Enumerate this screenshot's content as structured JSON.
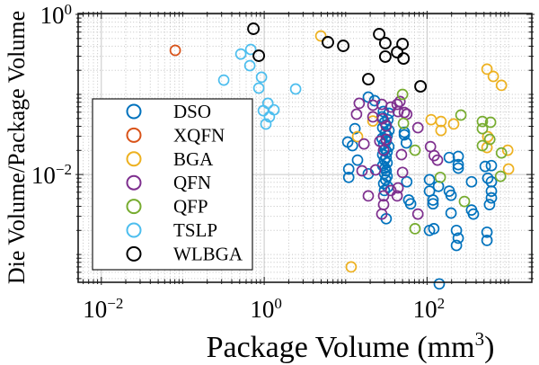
{
  "page": {
    "background": "#ffffff"
  },
  "chart_data": {
    "type": "scatter",
    "title": "",
    "xlabel": {
      "pre": "Package Volume (mm",
      "sup": "3",
      "post": ")"
    },
    "ylabel": "Die Volume/Package Volume",
    "xscale": "log",
    "yscale": "log",
    "xlim": [
      0.0052,
      1930
    ],
    "ylim": [
      0.00045,
      1.026
    ],
    "x_major_tick_exponents": [
      -2,
      0,
      2
    ],
    "y_major_tick_exponents": [
      0,
      -2
    ],
    "x_minor_decades": [
      -3,
      3
    ],
    "y_minor_decades": [
      -4,
      0
    ],
    "grid": {
      "major": true,
      "minor": true,
      "major_color": "#c7c7c7",
      "minor_color": "#b9b9b9",
      "minor_dash": "1 2.4"
    },
    "axis_color": "#1a1a1a",
    "background": "#ffffff",
    "legend": {
      "position": "upper-left-inside",
      "entries": [
        "DSO",
        "XQFN",
        "BGA",
        "QFN",
        "QFP",
        "TSLP",
        "WLBGA"
      ]
    },
    "series": [
      {
        "name": "DSO",
        "color": "#0072BD",
        "marker": "circle",
        "points": [
          [
            29,
            0.0612
          ],
          [
            34,
            0.0581
          ],
          [
            28,
            0.0524
          ],
          [
            33,
            0.0484
          ],
          [
            30,
            0.0449
          ],
          [
            31.5,
            0.0415
          ],
          [
            28.5,
            0.0384
          ],
          [
            34,
            0.0355
          ],
          [
            30.7,
            0.0329
          ],
          [
            32.3,
            0.0304
          ],
          [
            28,
            0.0281
          ],
          [
            31.5,
            0.026
          ],
          [
            29.3,
            0.0241
          ],
          [
            33.9,
            0.0223
          ],
          [
            30.7,
            0.0206
          ],
          [
            32.3,
            0.0191
          ],
          [
            28.5,
            0.0177
          ],
          [
            31.5,
            0.0163
          ],
          [
            30,
            0.0151
          ],
          [
            32.3,
            0.014
          ],
          [
            28.5,
            0.0129
          ],
          [
            30.5,
            0.012
          ],
          [
            31.5,
            0.0111
          ],
          [
            30,
            0.0103
          ],
          [
            32.3,
            0.0095
          ],
          [
            31,
            0.0086
          ],
          [
            29.3,
            0.0077
          ],
          [
            33,
            0.007
          ],
          [
            30,
            0.0063
          ],
          [
            13,
            0.0374
          ],
          [
            52.5,
            0.0337
          ],
          [
            52.5,
            0.0313
          ],
          [
            55.5,
            0.0248
          ],
          [
            10.6,
            0.0254
          ],
          [
            12.1,
            0.0229
          ],
          [
            14,
            0.0151
          ],
          [
            10.9,
            0.0117
          ],
          [
            19,
            0.0102
          ],
          [
            10.9,
            0.0092
          ],
          [
            56.3,
            0.0081
          ],
          [
            19,
            0.0926
          ],
          [
            22.7,
            0.0835
          ],
          [
            59.5,
            0.0048
          ],
          [
            62.7,
            0.0043
          ],
          [
            31.5,
            0.0028
          ],
          [
            118,
            0.0043
          ],
          [
            121,
            0.0021
          ],
          [
            187,
            0.0163
          ],
          [
            241,
            0.0168
          ],
          [
            241,
            0.0133
          ],
          [
            241,
            0.012
          ],
          [
            516,
            0.0126
          ],
          [
            616,
            0.0129
          ],
          [
            556,
            0.009
          ],
          [
            107,
            0.0086
          ],
          [
            138,
            0.0071
          ],
          [
            107,
            0.0062
          ],
          [
            118,
            0.0048
          ],
          [
            187,
            0.0062
          ],
          [
            197,
            0.0055
          ],
          [
            351,
            0.0081
          ],
          [
            616,
            0.0081
          ],
          [
            616,
            0.0062
          ],
          [
            616,
            0.0051
          ],
          [
            584,
            0.0042
          ],
          [
            351,
            0.0036
          ],
          [
            370,
            0.0032
          ],
          [
            197,
            0.0033
          ],
          [
            107,
            0.002
          ],
          [
            229,
            0.002
          ],
          [
            241,
            0.0016
          ],
          [
            229,
            0.0013
          ],
          [
            543,
            0.0019
          ],
          [
            543,
            0.0015
          ],
          [
            141,
            0.00043
          ]
        ]
      },
      {
        "name": "XQFN",
        "color": "#D95319",
        "marker": "circle",
        "points": [
          [
            0.081,
            0.355
          ]
        ]
      },
      {
        "name": "BGA",
        "color": "#EDB120",
        "marker": "circle",
        "points": [
          [
            4.95,
            0.538
          ],
          [
            543,
            0.207
          ],
          [
            650,
            0.168
          ],
          [
            818,
            0.13
          ],
          [
            112,
            0.0484
          ],
          [
            148,
            0.046
          ],
          [
            148,
            0.0355
          ],
          [
            212,
            0.0427
          ],
          [
            556,
            0.0297
          ],
          [
            543,
            0.0217
          ],
          [
            976,
            0.0201
          ],
          [
            1000,
            0.0117
          ],
          [
            14,
            0.0297
          ],
          [
            21.6,
            0.0466
          ],
          [
            11.7,
            0.0007
          ]
        ]
      },
      {
        "name": "QFN",
        "color": "#7E2F8E",
        "marker": "circle",
        "points": [
          [
            14.7,
            0.0774
          ],
          [
            13.6,
            0.0566
          ],
          [
            21.6,
            0.0733
          ],
          [
            27.8,
            0.0752
          ],
          [
            35.9,
            0.0695
          ],
          [
            42.9,
            0.0752
          ],
          [
            46.4,
            0.0815
          ],
          [
            44,
            0.0611
          ],
          [
            52.5,
            0.0595
          ],
          [
            56.3,
            0.0566
          ],
          [
            21.6,
            0.0524
          ],
          [
            28.5,
            0.0497
          ],
          [
            31.5,
            0.0404
          ],
          [
            77.1,
            0.0384
          ],
          [
            31.5,
            0.0275
          ],
          [
            26.3,
            0.026
          ],
          [
            16.8,
            0.0241
          ],
          [
            29.2,
            0.0201
          ],
          [
            48.4,
            0.0177
          ],
          [
            15.9,
            0.0111
          ],
          [
            23.3,
            0.0114
          ],
          [
            50,
            0.0106
          ],
          [
            44,
            0.0068
          ],
          [
            35.9,
            0.0063
          ],
          [
            19,
            0.0054
          ],
          [
            29.2,
            0.0054
          ],
          [
            42.9,
            0.0054
          ],
          [
            29.2,
            0.0042
          ],
          [
            27.8,
            0.0032
          ],
          [
            77.1,
            0.0032
          ],
          [
            110,
            0.0223
          ],
          [
            122,
            0.0172
          ],
          [
            134,
            0.0151
          ]
        ]
      },
      {
        "name": "QFP",
        "color": "#77AC30",
        "marker": "circle",
        "points": [
          [
            50,
            0.1
          ],
          [
            51.2,
            0.0435
          ],
          [
            71.1,
            0.0201
          ],
          [
            71.1,
            0.0021
          ],
          [
            260,
            0.0552
          ],
          [
            478,
            0.046
          ],
          [
            601,
            0.0449
          ],
          [
            478,
            0.0374
          ],
          [
            588,
            0.0275
          ],
          [
            478,
            0.0229
          ],
          [
            818,
            0.0186
          ],
          [
            797,
            0.0095
          ],
          [
            145,
            0.0092
          ],
          [
            287,
            0.0046
          ]
        ]
      },
      {
        "name": "TSLP",
        "color": "#4DBEEE",
        "marker": "circle",
        "points": [
          [
            0.517,
            0.32
          ],
          [
            0.683,
            0.365
          ],
          [
            0.666,
            0.229
          ],
          [
            0.319,
            0.151
          ],
          [
            0.927,
            0.164
          ],
          [
            0.858,
            0.12
          ],
          [
            1.11,
            0.0774
          ],
          [
            1.32,
            0.0642
          ],
          [
            0.975,
            0.0627
          ],
          [
            1.16,
            0.0524
          ],
          [
            1.05,
            0.0426
          ],
          [
            2.43,
            0.117
          ]
        ]
      },
      {
        "name": "WLBGA",
        "color": "#000000",
        "marker": "circle",
        "points": [
          [
            0.737,
            0.661
          ],
          [
            0.858,
            0.304
          ],
          [
            6.06,
            0.448
          ],
          [
            9.34,
            0.404
          ],
          [
            25.8,
            0.566
          ],
          [
            30.7,
            0.437
          ],
          [
            50,
            0.426
          ],
          [
            42.9,
            0.337
          ],
          [
            30.7,
            0.297
          ],
          [
            51.3,
            0.281
          ],
          [
            19,
            0.155
          ],
          [
            83.1,
            0.126
          ]
        ]
      }
    ]
  }
}
